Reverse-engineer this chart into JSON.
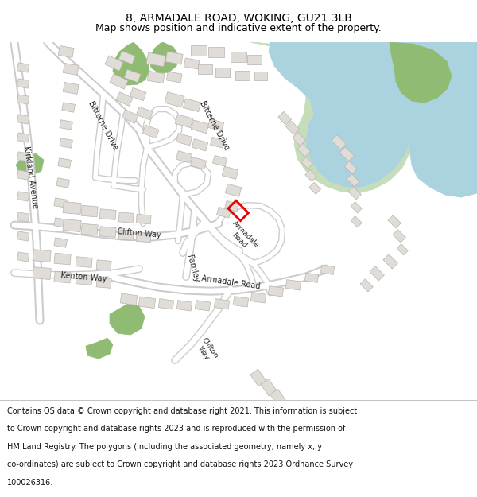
{
  "title": "8, ARMADALE ROAD, WOKING, GU21 3LB",
  "subtitle": "Map shows position and indicative extent of the property.",
  "footer_lines": [
    "Contains OS data © Crown copyright and database right 2021. This information is subject",
    "to Crown copyright and database rights 2023 and is reproduced with the permission of",
    "HM Land Registry. The polygons (including the associated geometry, namely x, y",
    "co-ordinates) are subject to Crown copyright and database rights 2023 Ordnance Survey",
    "100026316."
  ],
  "bg_color": "#f0eeea",
  "road_color": "#ffffff",
  "road_border_color": "#cccccc",
  "building_color": "#e0ddd8",
  "building_border_color": "#b8b4ae",
  "water_color": "#aad3df",
  "green_color": "#8fbc72",
  "green_light_color": "#c5ddb8",
  "highlight_color": "#ee0000",
  "title_fontsize": 10,
  "subtitle_fontsize": 9,
  "footer_fontsize": 7
}
